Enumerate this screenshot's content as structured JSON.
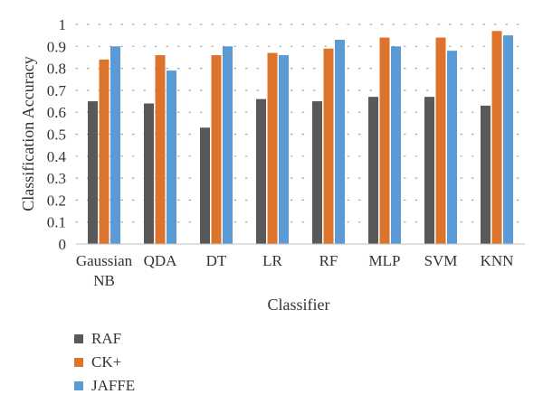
{
  "chart_data": {
    "type": "bar",
    "title": "",
    "xlabel": "Classifier",
    "ylabel": "Classification Accuracy",
    "ylim": [
      0,
      1
    ],
    "yticks": [
      "0",
      "0.1",
      "0.2",
      "0.3",
      "0.4",
      "0.5",
      "0.6",
      "0.7",
      "0.8",
      "0.9",
      "1"
    ],
    "grid": "dotted horizontal",
    "legend_position": "bottom-left",
    "categories": [
      [
        "Gaussian",
        "NB"
      ],
      [
        "QDA"
      ],
      [
        "DT"
      ],
      [
        "LR"
      ],
      [
        "RF"
      ],
      [
        "MLP"
      ],
      [
        "SVM"
      ],
      [
        "KNN"
      ]
    ],
    "series": [
      {
        "name": "RAF",
        "color": "#595959",
        "values": [
          0.65,
          0.64,
          0.53,
          0.66,
          0.65,
          0.67,
          0.67,
          0.63
        ]
      },
      {
        "name": "CK+",
        "color": "#dd742b",
        "values": [
          0.84,
          0.86,
          0.86,
          0.87,
          0.89,
          0.94,
          0.94,
          0.97
        ]
      },
      {
        "name": "JAFFE",
        "color": "#5b9bd5",
        "values": [
          0.9,
          0.79,
          0.9,
          0.86,
          0.93,
          0.9,
          0.88,
          0.95
        ]
      }
    ]
  }
}
